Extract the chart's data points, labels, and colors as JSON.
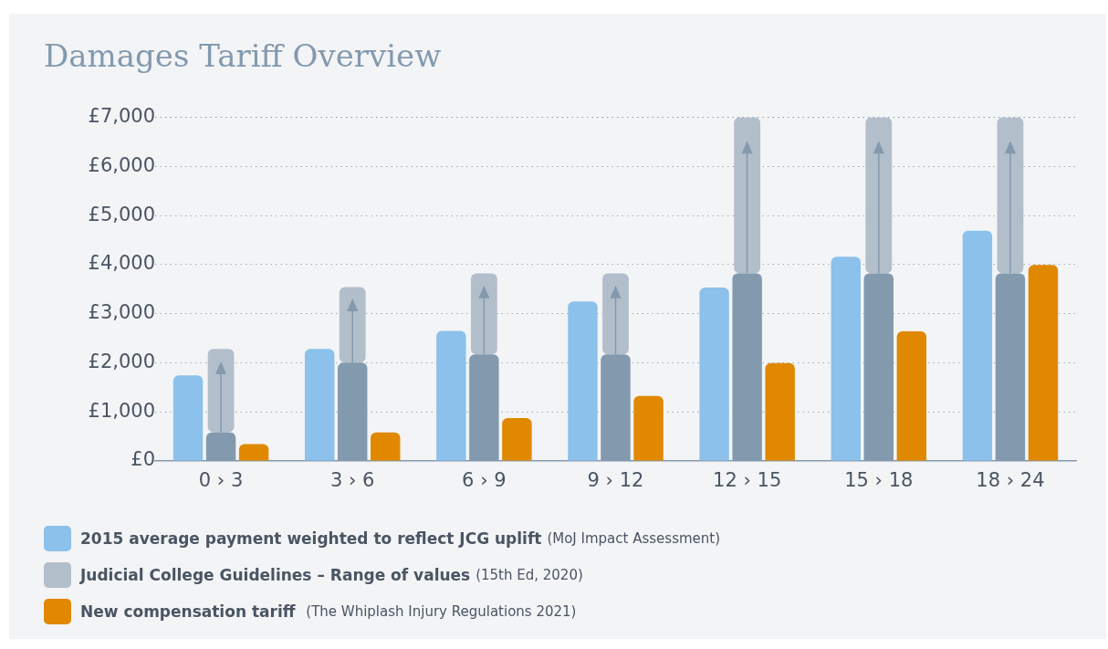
{
  "chart_data": {
    "type": "bar",
    "title": "Damages Tariff Overview",
    "categories": [
      "0 › 3",
      "3 › 6",
      "6 › 9",
      "9 › 12",
      "12 › 15",
      "15 › 18",
      "18 › 24"
    ],
    "series": [
      {
        "name": "2015 average payment weighted to reflect JCG uplift (MoJ Impact Assessment)",
        "color": "#8bc1ea",
        "values": [
          1740,
          2280,
          2650,
          3250,
          3530,
          4160,
          4690
        ]
      },
      {
        "color": "#8399ae",
        "values": [
          580,
          2000,
          2170,
          2170,
          3820,
          3820,
          3820
        ]
      },
      {
        "name": "Judicial College Guidelines – Range of values (15th Ed, 2020)",
        "color": "#b3becb",
        "base": [
          580,
          2000,
          2170,
          2170,
          3820,
          3820,
          3820
        ],
        "values": [
          1700,
          1540,
          1650,
          1650,
          3180,
          3180,
          3180
        ]
      },
      {
        "name": "New compensation tariff  (The Whiplash Injury Regulations 2021)",
        "color": "#e08800",
        "values": [
          340,
          580,
          870,
          1320,
          1990,
          2640,
          3990
        ]
      }
    ],
    "ylim": [
      0,
      7000
    ],
    "yticks": [
      {
        "value": 0,
        "label": "£0"
      },
      {
        "value": 1000,
        "label": "£1,000"
      },
      {
        "value": 2000,
        "label": "£2,000"
      },
      {
        "value": 3000,
        "label": "£3,000"
      },
      {
        "value": 4000,
        "label": "£4,000"
      },
      {
        "value": 5000,
        "label": "£5,000"
      },
      {
        "value": 6000,
        "label": "£6,000"
      },
      {
        "value": 7000,
        "label": "£7,000"
      }
    ],
    "grid": "y",
    "legend": "bottom"
  }
}
